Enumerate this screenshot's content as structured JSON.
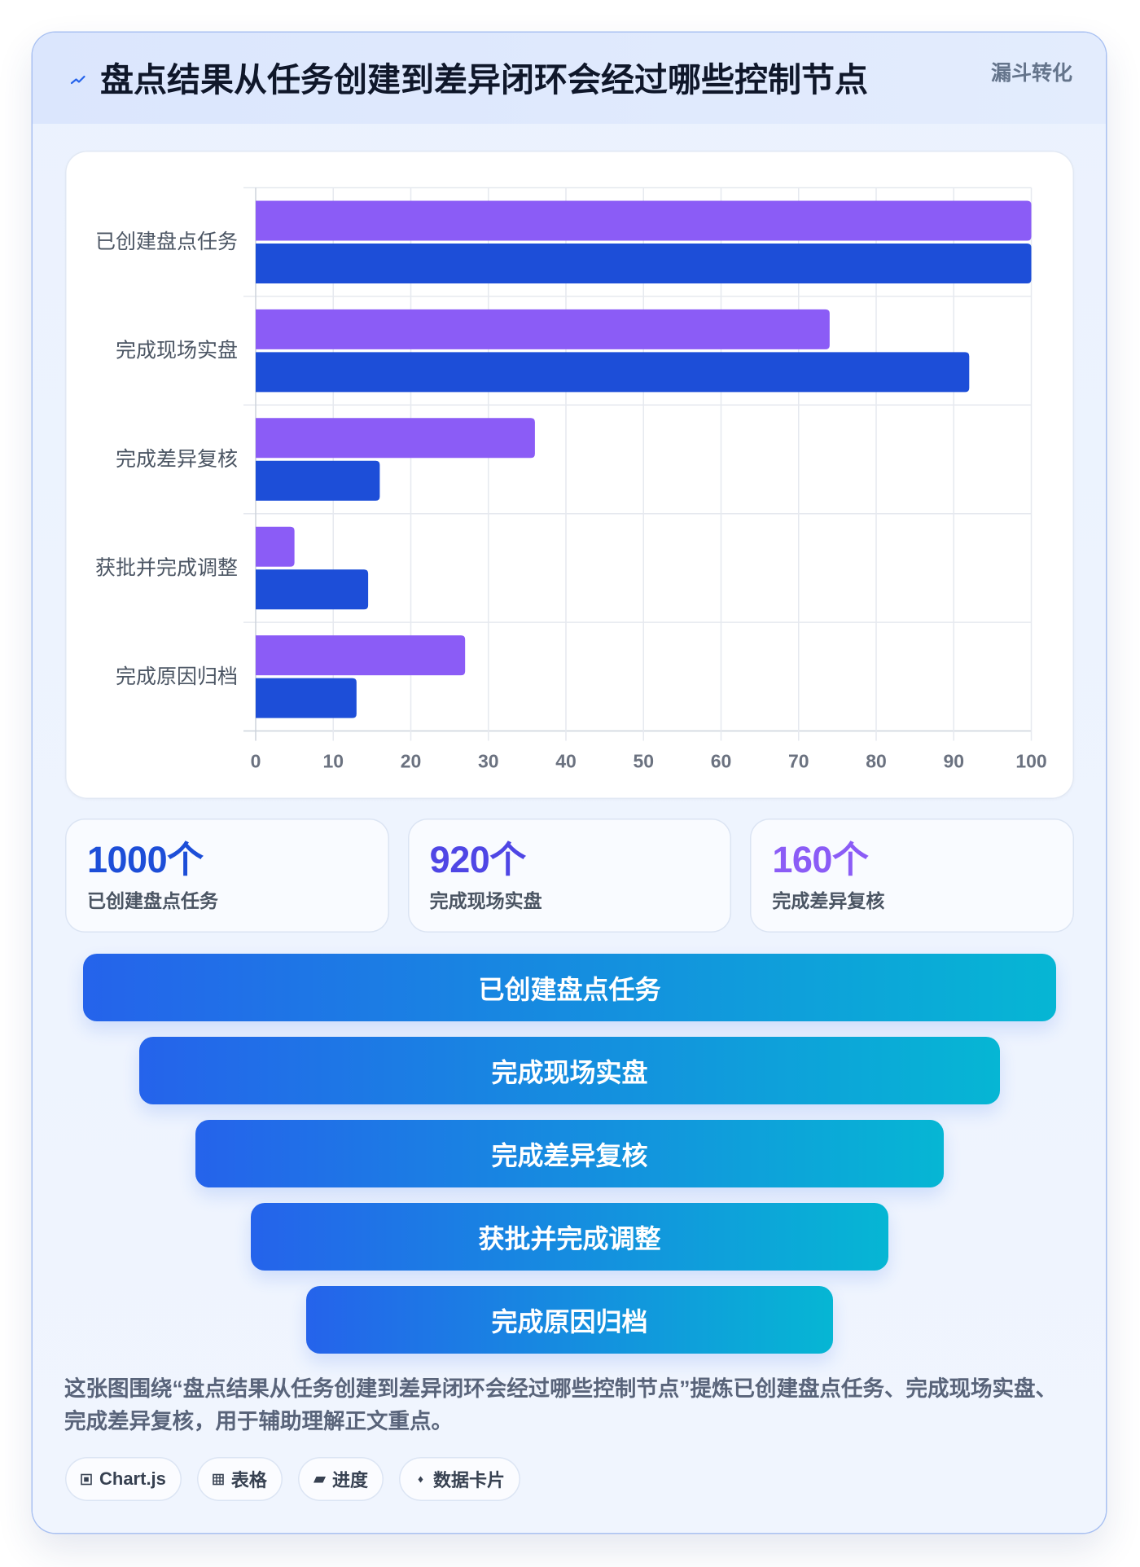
{
  "header": {
    "icon": "bolt-icon",
    "title": "盘点结果从任务创建到差异闭环会经过哪些控制节点",
    "badge": "漏斗转化"
  },
  "chart_data": {
    "type": "bar",
    "orientation": "horizontal",
    "categories": [
      "已创建盘点任务",
      "完成现场实盘",
      "完成差异复核",
      "获批并完成调整",
      "完成原因归档"
    ],
    "series": [
      {
        "values": [
          100,
          74,
          36,
          5,
          27
        ],
        "color": "#8b5cf6"
      },
      {
        "values": [
          100,
          92,
          16,
          14.5,
          13
        ],
        "color": "#1d4ed8"
      }
    ],
    "xlim": [
      0,
      100
    ],
    "x_ticks": [
      "0",
      "10",
      "20",
      "30",
      "40",
      "50",
      "60",
      "70",
      "80",
      "90",
      "100"
    ],
    "grid": true,
    "legend": "none"
  },
  "stats": [
    {
      "value": "1000个",
      "label": "已创建盘点任务",
      "color": "#1d4ed8"
    },
    {
      "value": "920个",
      "label": "完成现场实盘",
      "color": "#4f46e5"
    },
    {
      "value": "160个",
      "label": "完成差异复核",
      "color": "#8b5cf6"
    }
  ],
  "funnel": {
    "steps": [
      "已创建盘点任务",
      "完成现场实盘",
      "完成差异复核",
      "获批并完成调整",
      "完成原因归档"
    ],
    "gradient": [
      "#2563eb",
      "#06b6d4"
    ]
  },
  "description": "这张图围绕“盘点结果从任务创建到差异闭环会经过哪些控制节点”提炼已创建盘点任务、完成现场实盘、完成差异复核，用于辅助理解正文重点。",
  "tags": [
    {
      "icon": "chart-icon",
      "label": "Chart.js"
    },
    {
      "icon": "table-icon",
      "label": "表格"
    },
    {
      "icon": "progress-icon",
      "label": "进度"
    },
    {
      "icon": "card-icon",
      "label": "数据卡片"
    }
  ]
}
